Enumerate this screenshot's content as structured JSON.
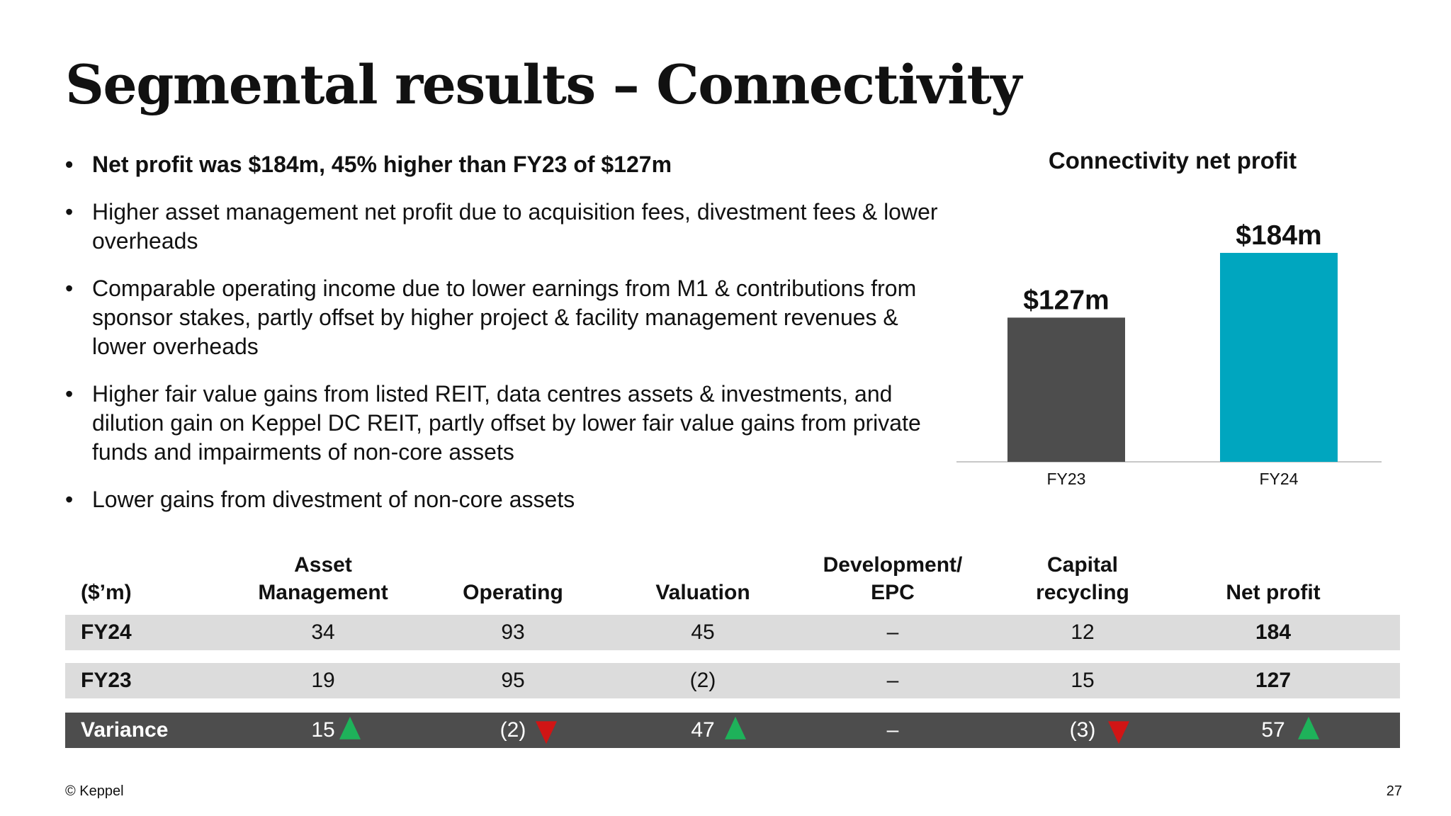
{
  "title": "Segmental results – Connectivity",
  "bullets": [
    {
      "text": "Net profit was $184m, 45% higher than FY23 of $127m",
      "bold": true
    },
    {
      "text": "Higher asset management net profit due to acquisition fees, divestment fees & lower overheads",
      "bold": false
    },
    {
      "text": "Comparable operating income due to lower earnings from M1 & contributions from sponsor stakes, partly offset by higher project & facility management revenues & lower overheads",
      "bold": false
    },
    {
      "text": "Higher fair value gains from listed REIT, data centres assets & investments, and dilution gain on Keppel DC REIT, partly offset by lower fair value gains from private funds and impairments of non-core assets",
      "bold": false
    },
    {
      "text": "Lower gains from divestment of non-core assets",
      "bold": false
    }
  ],
  "chart_data": {
    "type": "bar",
    "title": "Connectivity net profit",
    "categories": [
      "FY23",
      "FY24"
    ],
    "values": [
      127,
      184
    ],
    "data_labels": [
      "$127m",
      "$184m"
    ],
    "colors": [
      "#4d4d4d",
      "#00a6bf"
    ],
    "ylim": [
      0,
      184
    ],
    "grid": false
  },
  "table": {
    "headers": [
      "($'m)",
      "Asset Management",
      "Operating",
      "Valuation",
      "Development/ EPC",
      "Capital recycling",
      "Net profit"
    ],
    "header_lines": [
      [
        "($’m)"
      ],
      [
        "Asset",
        "Management"
      ],
      [
        "Operating"
      ],
      [
        "Valuation"
      ],
      [
        "Development/",
        "EPC"
      ],
      [
        "Capital",
        "recycling"
      ],
      [
        "Net profit"
      ]
    ],
    "rows": {
      "fy24": {
        "label": "FY24",
        "values": [
          "34",
          "93",
          "45",
          "–",
          "12",
          "184"
        ]
      },
      "fy23": {
        "label": "FY23",
        "values": [
          "19",
          "95",
          "(2)",
          "–",
          "15",
          "127"
        ]
      },
      "variance": {
        "label": "Variance",
        "values": [
          "15",
          "(2)",
          "47",
          "–",
          "(3)",
          "57"
        ],
        "arrows": [
          "up",
          "down",
          "up",
          "",
          "down",
          "up"
        ]
      }
    },
    "arrow_colors": {
      "up": "#1eb25a",
      "down": "#d01515"
    }
  },
  "footer": {
    "copyright": "© Keppel",
    "page_number": "27"
  }
}
